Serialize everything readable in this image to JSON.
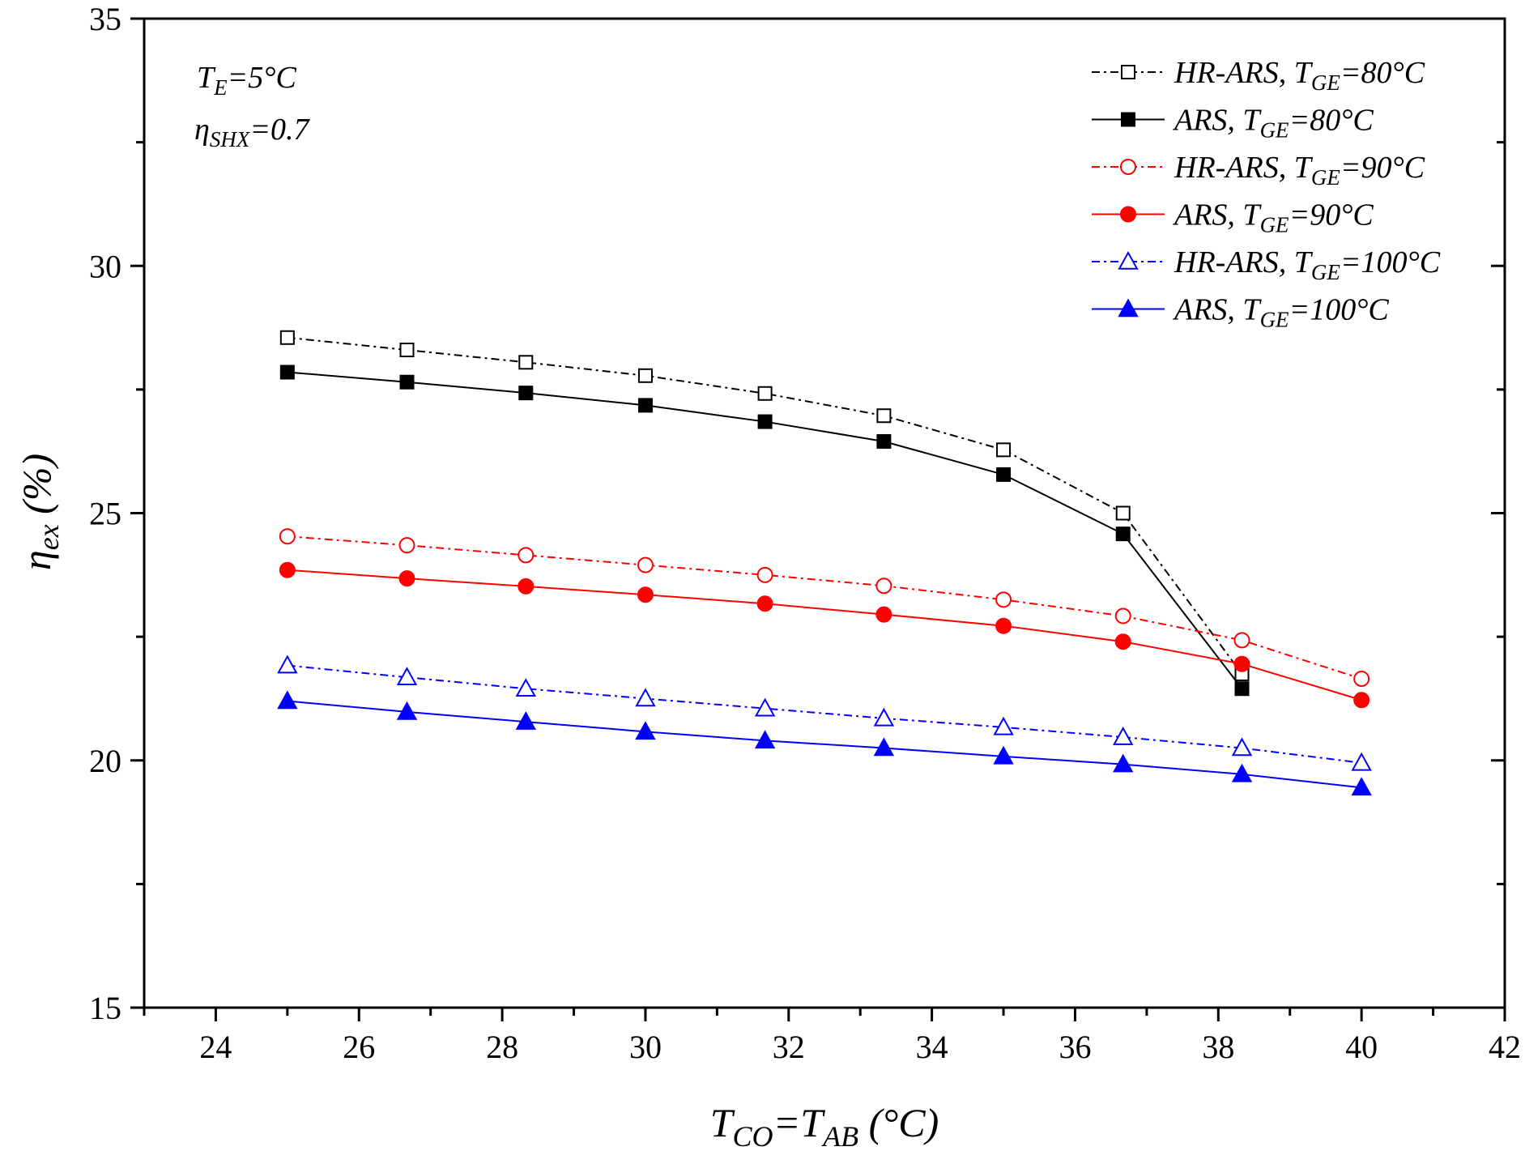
{
  "chart_data": {
    "type": "line",
    "x_axis": {
      "min": 23,
      "max": 42,
      "major_ticks": [
        24,
        26,
        28,
        30,
        32,
        34,
        36,
        38,
        40,
        42
      ],
      "tick_labels": [
        "24",
        "26",
        "28",
        "30",
        "32",
        "34",
        "36",
        "38",
        "40",
        "42"
      ],
      "label": {
        "main": "T",
        "sub1": "CO",
        "mid": "=T",
        "sub2": "AB",
        "tail": " (°C)"
      }
    },
    "y_axis": {
      "min": 15,
      "max": 35,
      "major_ticks": [
        15,
        20,
        25,
        30,
        35
      ],
      "tick_labels": [
        "15",
        "20",
        "25",
        "30",
        "35"
      ],
      "label": {
        "main": "η",
        "sub": "ex",
        "tail": " (%)"
      }
    },
    "annotations": [
      {
        "main": "T",
        "sub": "E",
        "tail": "=5°C"
      },
      {
        "main": "η",
        "sub": "SHX",
        "tail": "=0.7"
      }
    ],
    "x": [
      25,
      26.67,
      28.33,
      30,
      31.67,
      33.33,
      35,
      36.67,
      38.33,
      40
    ],
    "series": [
      {
        "key": "hr80",
        "prefix": "HR-ARS, T",
        "sub": "GE",
        "suffix": "=80°C",
        "color": "#000000",
        "marker": "square",
        "filled": false,
        "dash": "dashdot",
        "x": [
          25,
          26.67,
          28.33,
          30,
          31.67,
          33.33,
          35,
          36.67,
          38.33
        ],
        "values": [
          28.55,
          28.3,
          28.05,
          27.78,
          27.42,
          26.97,
          26.28,
          25.0,
          21.75
        ]
      },
      {
        "key": "ars80",
        "prefix": "ARS, T",
        "sub": "GE",
        "suffix": "=80°C",
        "color": "#000000",
        "marker": "square",
        "filled": true,
        "dash": "solid",
        "x": [
          25,
          26.67,
          28.33,
          30,
          31.67,
          33.33,
          35,
          36.67,
          38.33
        ],
        "values": [
          27.85,
          27.65,
          27.43,
          27.18,
          26.85,
          26.45,
          25.78,
          24.58,
          21.45
        ]
      },
      {
        "key": "hr90",
        "prefix": "HR-ARS, T",
        "sub": "GE",
        "suffix": "=90°C",
        "color": "#ff0000",
        "marker": "circle",
        "filled": false,
        "dash": "dashdot",
        "x": [
          25,
          26.67,
          28.33,
          30,
          31.67,
          33.33,
          35,
          36.67,
          38.33,
          40
        ],
        "values": [
          24.53,
          24.35,
          24.15,
          23.95,
          23.75,
          23.53,
          23.25,
          22.92,
          22.43,
          21.65
        ]
      },
      {
        "key": "ars90",
        "prefix": "ARS, T",
        "sub": "GE",
        "suffix": "=90°C",
        "color": "#ff0000",
        "marker": "circle",
        "filled": true,
        "dash": "solid",
        "x": [
          25,
          26.67,
          28.33,
          30,
          31.67,
          33.33,
          35,
          36.67,
          38.33,
          40
        ],
        "values": [
          23.85,
          23.68,
          23.52,
          23.35,
          23.17,
          22.95,
          22.72,
          22.4,
          21.95,
          21.22
        ]
      },
      {
        "key": "hr100",
        "prefix": "HR-ARS, T",
        "sub": "GE",
        "suffix": "=100°C",
        "color": "#0000ff",
        "marker": "triangle",
        "filled": false,
        "dash": "dashdot",
        "x": [
          25,
          26.67,
          28.33,
          30,
          31.67,
          33.33,
          35,
          36.67,
          38.33,
          40
        ],
        "values": [
          21.92,
          21.68,
          21.45,
          21.25,
          21.05,
          20.85,
          20.67,
          20.47,
          20.25,
          19.95
        ]
      },
      {
        "key": "ars100",
        "prefix": "ARS, T",
        "sub": "GE",
        "suffix": "=100°C",
        "color": "#0000ff",
        "marker": "triangle",
        "filled": true,
        "dash": "solid",
        "x": [
          25,
          26.67,
          28.33,
          30,
          31.67,
          33.33,
          35,
          36.67,
          38.33,
          40
        ],
        "values": [
          21.2,
          20.98,
          20.78,
          20.58,
          20.4,
          20.25,
          20.08,
          19.92,
          19.72,
          19.45
        ]
      }
    ],
    "legend_position": "top-right",
    "grid": false
  }
}
